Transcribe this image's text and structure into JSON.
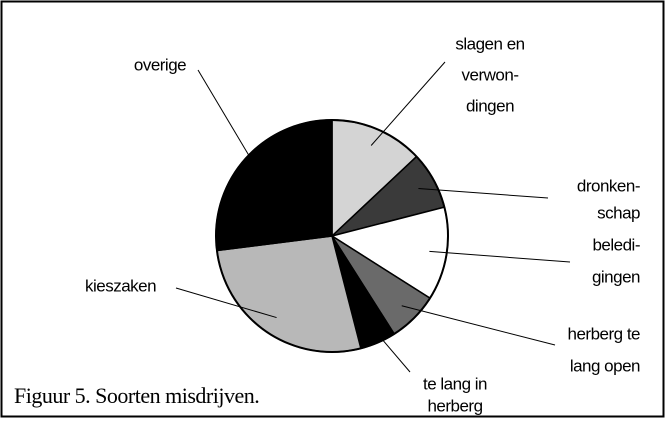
{
  "chart_data": {
    "type": "pie",
    "title": "Figuur 5. Soorten misdrijven.",
    "categories": [
      [
        "slagen en",
        "verwon-",
        "dingen"
      ],
      [
        "dronken-",
        "schap"
      ],
      [
        "beledi-",
        "gingen"
      ],
      [
        "herberg te",
        "lang open"
      ],
      [
        "te lang in",
        "herberg"
      ],
      [
        "kieszaken"
      ],
      [
        "overige"
      ]
    ],
    "values": [
      13,
      8,
      13,
      7,
      5,
      27,
      27
    ],
    "colors": [
      "#d4d4d4",
      "#3a3a3a",
      "#ffffff",
      "#6a6a6a",
      "#000000",
      "#b8b8b8",
      "#000000"
    ]
  }
}
